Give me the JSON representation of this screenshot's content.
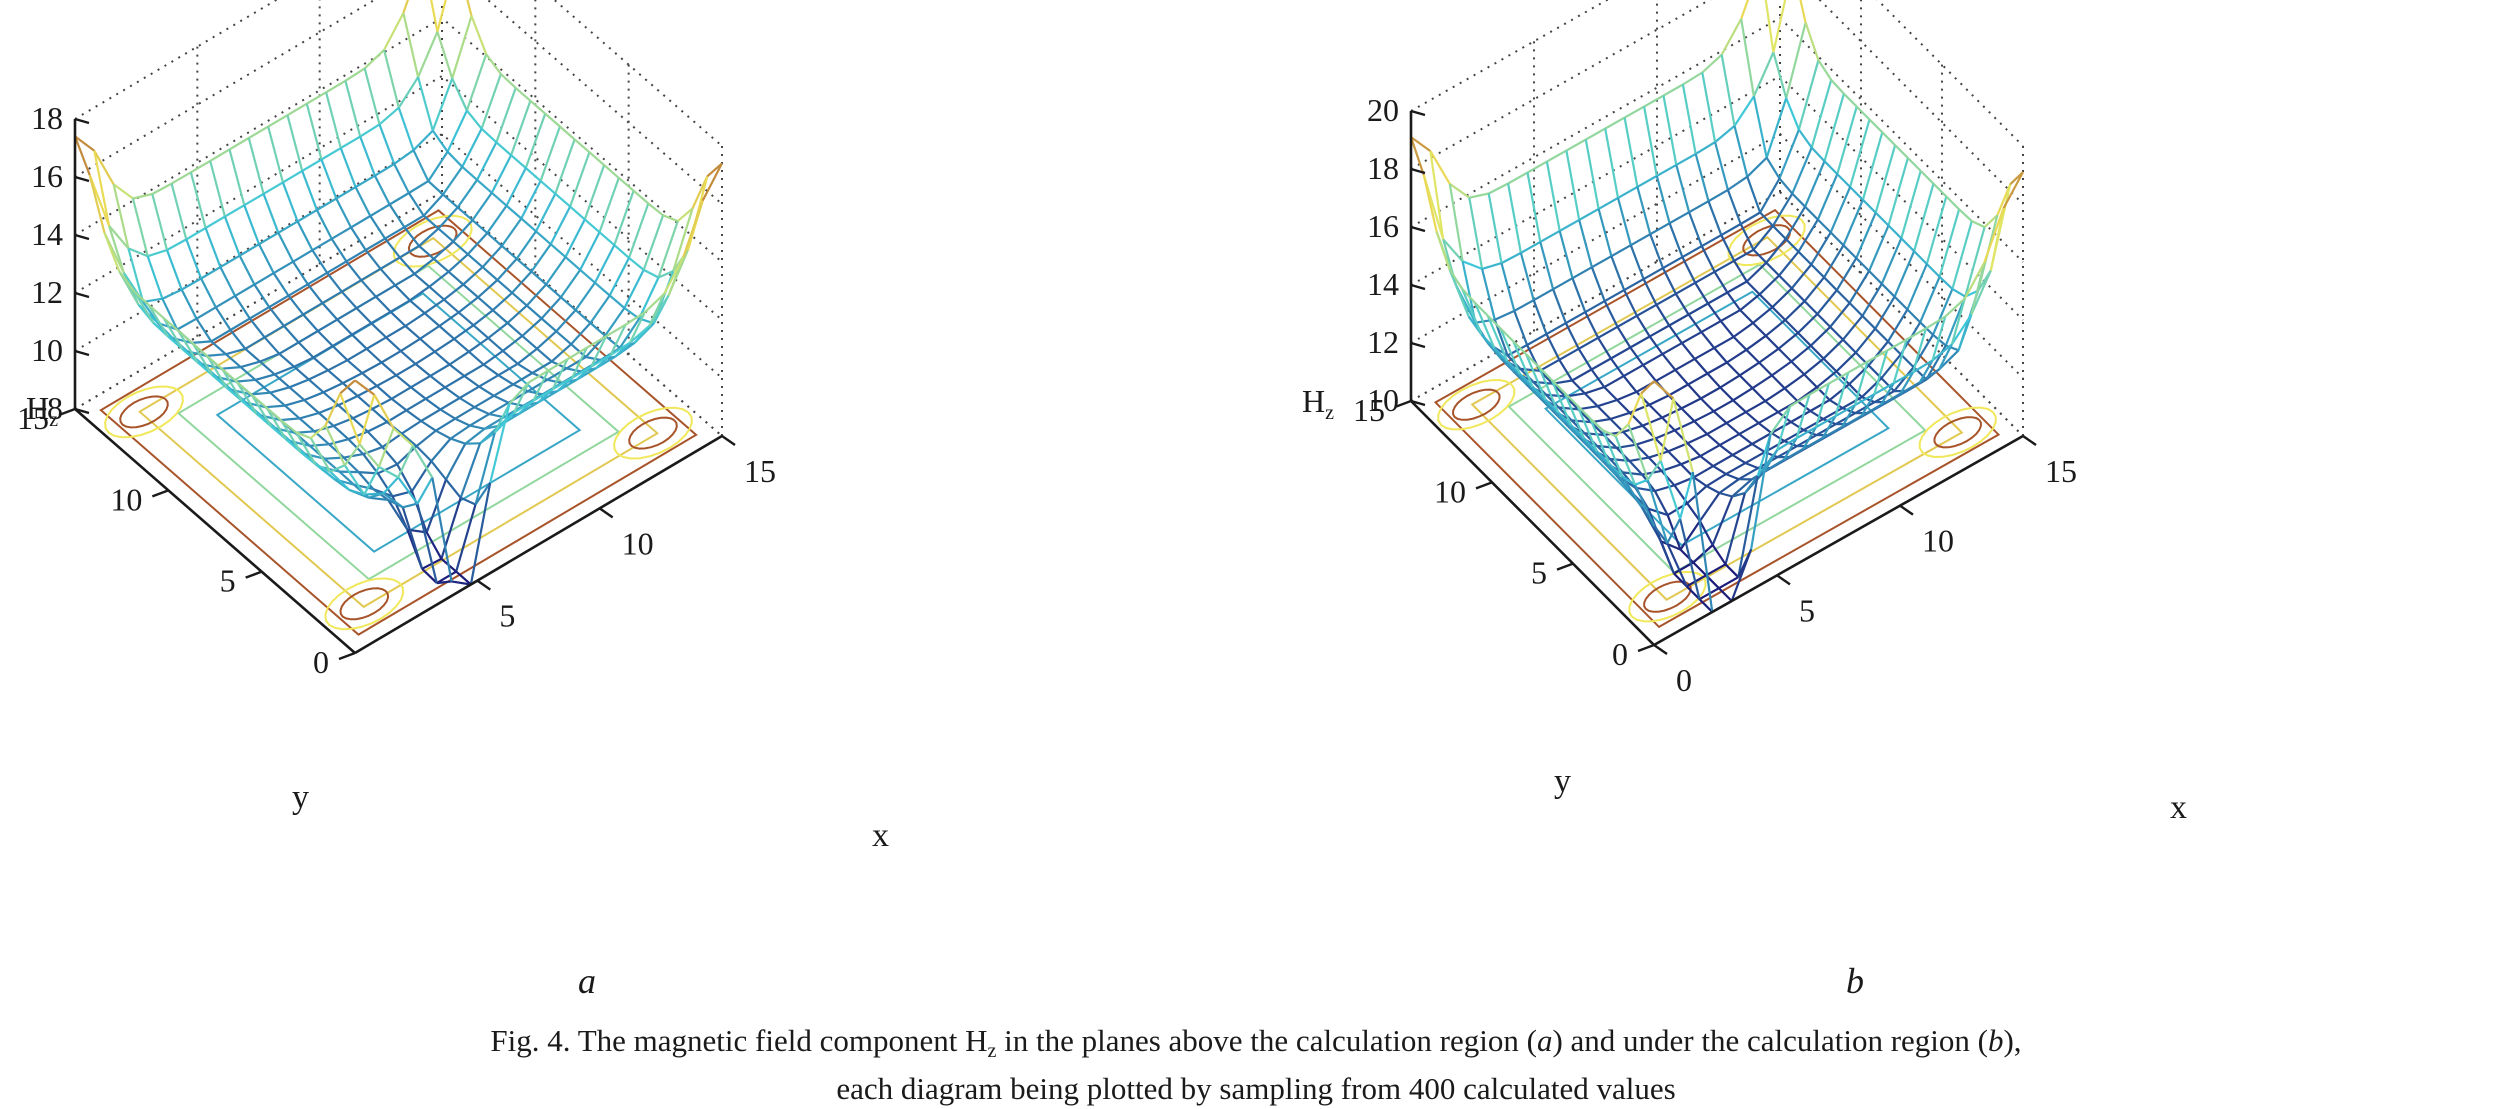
{
  "figure": {
    "caption_prefix": "Fig. 4. The magnetic field component H",
    "caption_sub": "z",
    "caption_middle": " in the planes above the calculation region (",
    "caption_a": "a",
    "caption_between": ") and under the calculation region (",
    "caption_b": "b",
    "caption_end": "),",
    "caption_line2": "each diagram being plotted by sampling from 400 calculated values"
  },
  "colors": {
    "wire_low": "#1c1c7a",
    "wire_mid": "#3ec8d8",
    "wire_high": "#f0e85a",
    "wire_peak": "#a8542a",
    "axis": "#1a1a1a",
    "grid": "#444444"
  },
  "chart_data": [
    {
      "type": "surface-mesh with contour projection",
      "panel_label": "a",
      "zlabel": "H",
      "zlabel_sub": "z",
      "xlabel": "x",
      "ylabel": "y",
      "xlim": [
        0,
        15
      ],
      "ylim": [
        0,
        15
      ],
      "zlim": [
        8,
        18
      ],
      "z_ticks": [
        "8",
        "10",
        "12",
        "14",
        "16",
        "18"
      ],
      "x_ticks": [
        "5",
        "10",
        "15"
      ],
      "y_ticks": [
        "0",
        "5",
        "10",
        "15"
      ],
      "grid": true,
      "grid_size": [
        20,
        20
      ],
      "model": {
        "base": 10.0,
        "edge": 13.8,
        "corner": 17.4,
        "notch_depth": 7.0,
        "notch_center_x": 4.5
      }
    },
    {
      "type": "surface-mesh with contour projection",
      "panel_label": "b",
      "zlabel": "H",
      "zlabel_sub": "z",
      "xlabel": "x",
      "ylabel": "y",
      "xlim": [
        0,
        15
      ],
      "ylim": [
        0,
        15
      ],
      "zlim": [
        10,
        20
      ],
      "z_ticks": [
        "10",
        "12",
        "14",
        "16",
        "18",
        "20"
      ],
      "x_ticks": [
        "0",
        "5",
        "10",
        "15"
      ],
      "y_ticks": [
        "0",
        "5",
        "10",
        "15"
      ],
      "grid": true,
      "grid_size": [
        20,
        20
      ],
      "model": {
        "base": 10.6,
        "edge": 15.6,
        "corner": 19.1,
        "notch_depth": 9.5,
        "notch_center_x": 3.0
      }
    }
  ]
}
